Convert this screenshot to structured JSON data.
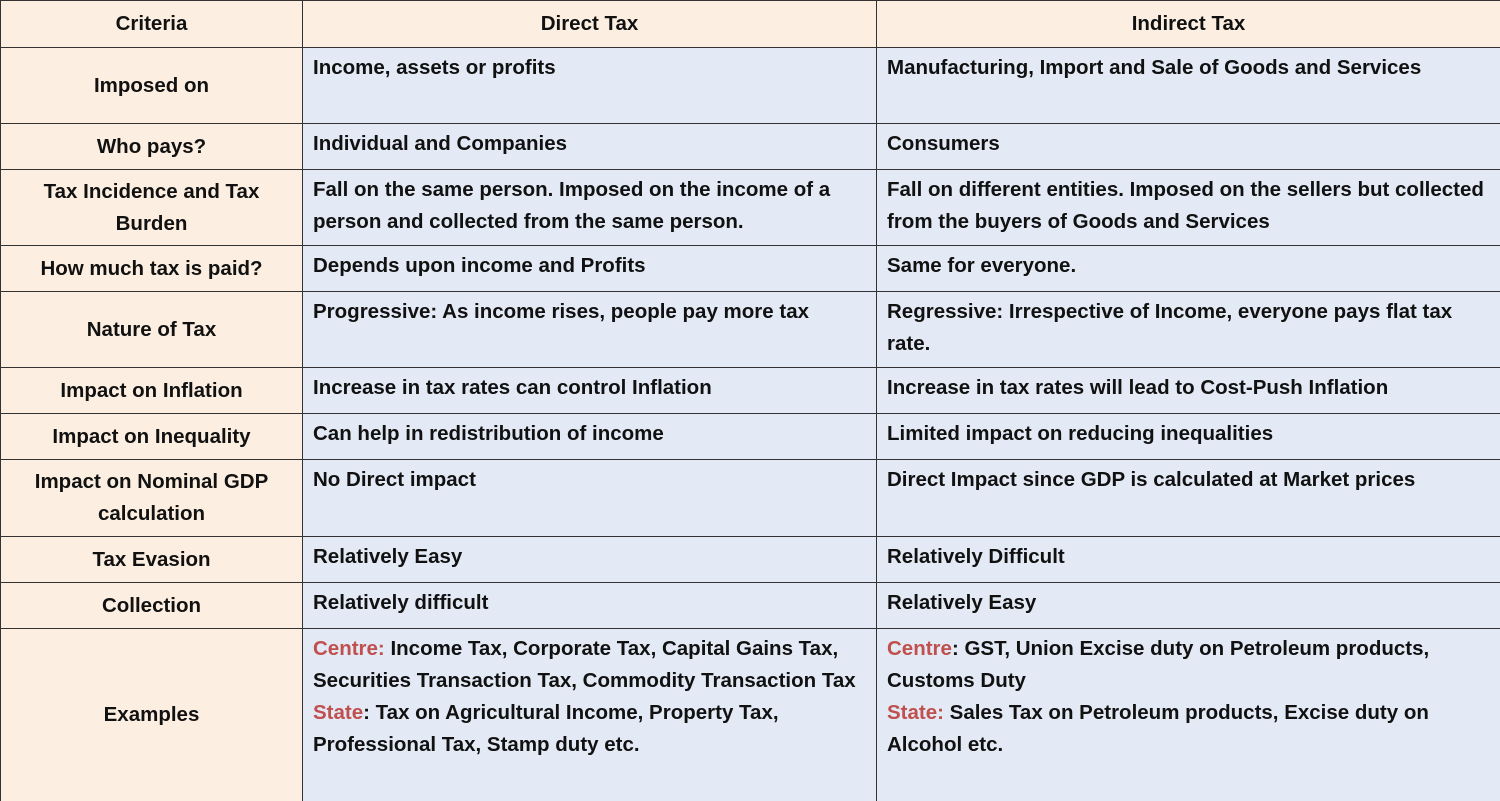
{
  "table": {
    "header": [
      "Criteria",
      "Direct Tax",
      "Indirect Tax"
    ],
    "rows": [
      [
        "Imposed on",
        "Income, assets or profits",
        "Manufacturing, Import and Sale of Goods and Services"
      ],
      [
        "Who pays?",
        "Individual and Companies",
        "Consumers"
      ],
      [
        "Tax Incidence and Tax Burden",
        "Fall on the same person. Imposed on the income of a person and collected from the same person.",
        "Fall on different entities. Imposed on the sellers but collected from the buyers of Goods and Services"
      ],
      [
        "How much tax is paid?",
        "Depends upon income and Profits",
        "Same for everyone."
      ],
      [
        "Nature of Tax",
        "Progressive: As income rises, people pay more tax",
        "Regressive: Irrespective of Income, everyone pays flat tax rate."
      ],
      [
        "Impact on Inflation",
        "Increase in tax rates can control Inflation",
        "Increase in tax rates will lead to Cost-Push Inflation"
      ],
      [
        "Impact on Inequality",
        "Can help in redistribution of income",
        "Limited impact on reducing inequalities"
      ],
      [
        "Impact on Nominal GDP calculation",
        "No Direct impact",
        "Direct Impact since GDP is calculated at Market prices"
      ],
      [
        "Tax Evasion",
        "Relatively Easy",
        "Relatively Difficult"
      ],
      [
        "Collection",
        "Relatively difficult",
        "Relatively Easy"
      ],
      [
        "Examples",
        [
          [
            {
              "text": "Centre:",
              "color": "#c0504d"
            },
            {
              "text": " Income Tax, Corporate Tax, Capital Gains Tax, Securities Transaction Tax, Commodity Transaction Tax"
            }
          ],
          [
            {
              "text": "State",
              "color": "#c0504d"
            },
            {
              "text": ": Tax on Agricultural Income, Property Tax, Professional Tax, Stamp duty etc."
            }
          ]
        ],
        [
          [
            {
              "text": "Centre",
              "color": "#c0504d"
            },
            {
              "text": ": GST, Union Excise duty on Petroleum products, Customs Duty"
            }
          ],
          [
            {
              "text": "State:",
              "color": "#c0504d"
            },
            {
              "text": " Sales Tax on Petroleum products, Excise duty on  Alcohol etc."
            }
          ]
        ]
      ]
    ]
  }
}
